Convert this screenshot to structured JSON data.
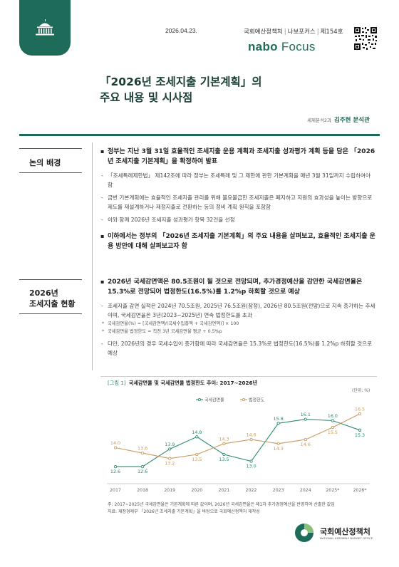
{
  "header": {
    "date": "2026.04.23.",
    "series_org": "국회예산정책처",
    "series_name": "나보포커스",
    "series_issue": "제154호",
    "brand_left": "nabo",
    "brand_right": "Focus"
  },
  "title": {
    "line1": "「2026년 조세지출 기본계획」의",
    "line2": "주요 내용 및 시사점"
  },
  "author": {
    "dept": "세제분석2과",
    "name": "김주현 분석관"
  },
  "sections": [
    {
      "label": "논의 배경",
      "bullets": [
        {
          "text": "정부는 지난 3월 31일 효율적인 조세지출 운용 계획과 조세지출 성과평가 계획 등을 담은 「2026년 조세지출 기본계획」을 확정하여 발표",
          "subs": [
            "「조세특례제한법」 제142조에 따라 정부는 조세특례 및 그 제한에 관한 기본계획을 매년 3월 31일까지 수립하여야 함",
            "금번 기본계획에는 효율적인 조세지출 관리를 위해 불요불급한 조세지출은 폐지하고 지원의 효과성을 높이는 방향으로 제도를 재설계하거나 재정지출로 전환하는 등의 정비 계획 원칙을 포함함",
            "이와 함께 2026년 조세지출 성과평가 항목 32건을 선정"
          ]
        },
        {
          "text": "이하에서는 정부의 「2026년 조세지출 기본계획」의 주요 내용을 살펴보고, 효율적인 조세지출 운용 방안에 대해 살펴보고자 함",
          "subs": []
        }
      ]
    },
    {
      "label_line1": "2026년",
      "label_line2": "조세지출 현황",
      "bullet": "2026년 국세감면액은 80.5조원이 될 것으로 전망되며, 추가경정예산을 감안한 국세감면율은 15.3%로 전망되어 법정한도(16.5%)를 1.2%p 하회할 것으로 예상",
      "sub1": "조세지출 감면 실적은 2024년 70.5조원, 2025년 76.5조원(잠정), 2026년 80.5조원(전망)으로 지속 증가하는 추세이며, 국세감면율은 3년(2023~2025년) 연속 법정한도를 초과",
      "note1": "국세감면율(%) = [국세감면액/(국세수입총액 + 국세감면액)] × 100",
      "note2": "국세감면율 법정한도 = 직전 3년 국세감면율 평균 + 0.5%p",
      "sub2": "다만, 2026년의 경우 국세수입이 증가함에 따라 국세감면율은 15.3%로 법정한도(16.5%)를 1.2%p 하회할 것으로 예상"
    }
  ],
  "figure": {
    "number": "[그림 1]",
    "title": "국세감면율 및 국세감면율 법정한도 추이: 2017~2026년",
    "unit": "(단위: %)",
    "footnote": "주: 2017~2025년 국세감면율은 기본계획에 따른 값이며, 2026년 국세감면율은 제1차 추가경정예산을 반영하여 산출한 값임",
    "source": "자료: 재정경제부 「2026년 조세지출 기본계획」을 바탕으로 국회예산정책처 재작성"
  },
  "chart_data": {
    "type": "line",
    "title": "국세감면율 및 국세감면율 법정한도 추이: 2017~2026년",
    "xlabel": "",
    "ylabel": "(단위: %)",
    "x": [
      "2017",
      "2018",
      "2019",
      "2020",
      "2021",
      "2022",
      "2023",
      "2024",
      "2025*",
      "2026*"
    ],
    "ylim": [
      11.5,
      17.5
    ],
    "grid": false,
    "legend": "top",
    "series": [
      {
        "name": "국세감면율",
        "color": "#2a8a73",
        "values": [
          12.6,
          12.6,
          13.9,
          14.8,
          13.5,
          13.0,
          15.8,
          16.1,
          16.0,
          15.3
        ]
      },
      {
        "name": "법정한도",
        "color": "#c89a5e",
        "values": [
          14.0,
          13.6,
          13.2,
          13.5,
          14.3,
          14.6,
          14.3,
          14.6,
          15.5,
          16.5
        ]
      }
    ]
  },
  "footer": {
    "org_name": "국회예산정책처",
    "org_en": "NATIONAL ASSEMBLY BUDGET OFFICE"
  },
  "colors": {
    "brand": "#1f6b5a",
    "series1": "#2a8a73",
    "series2": "#c89a5e"
  }
}
